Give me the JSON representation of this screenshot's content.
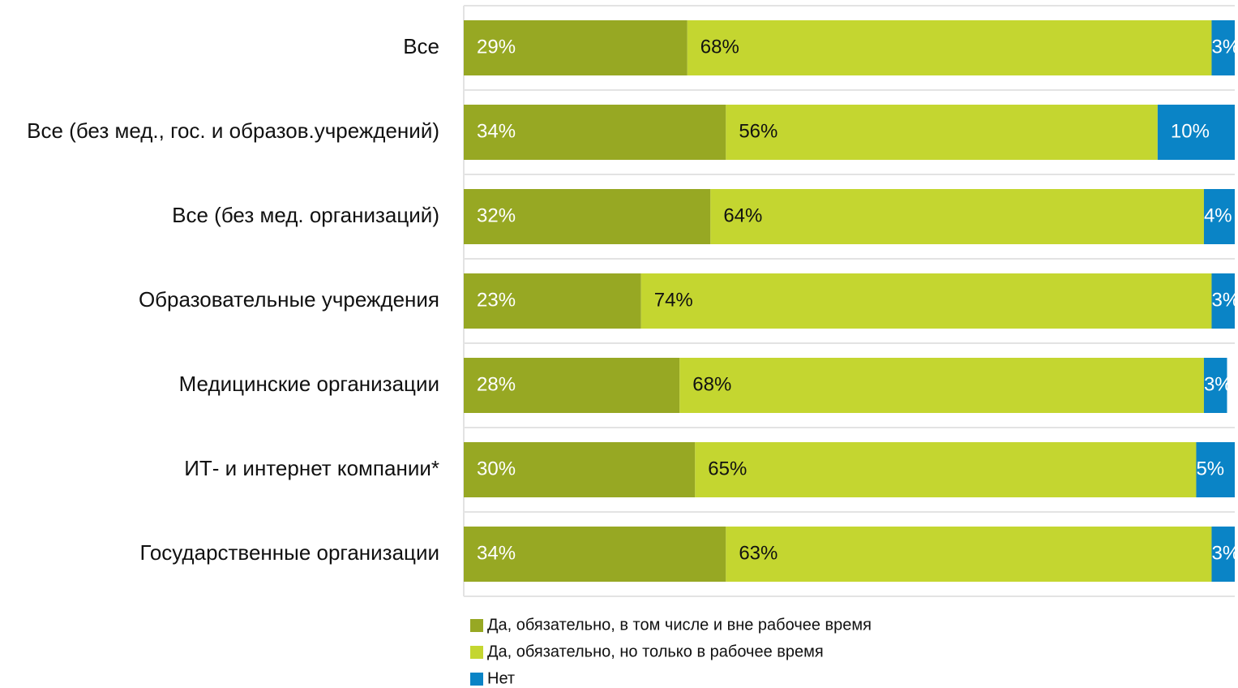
{
  "chart_data": {
    "type": "stacked-bar-horizontal",
    "categories": [
      "Все",
      "Все (без мед., гос. и образов.учреждений)",
      "Все (без мед. организаций)",
      "Образовательные учреждения",
      "Медицинские организации",
      "ИТ- и интернет компании*",
      "Государственные организации"
    ],
    "series": [
      {
        "name": "Да, обязательно, в том числе и вне рабочее время",
        "color": "#97a823",
        "label_color": "#ffffff",
        "values": [
          29,
          34,
          32,
          23,
          28,
          30,
          34
        ],
        "value_labels": [
          "29%",
          "34%",
          "32%",
          "23%",
          "28%",
          "30%",
          "34%"
        ]
      },
      {
        "name": "Да, обязательно, но только в рабочее время",
        "color": "#c4d630",
        "label_color": "#111111",
        "values": [
          68,
          56,
          64,
          74,
          68,
          65,
          63
        ],
        "value_labels": [
          "68%",
          "56%",
          "64%",
          "74%",
          "68%",
          "65%",
          "63%"
        ]
      },
      {
        "name": "Нет",
        "color": "#0a84c6",
        "label_color": "#ffffff",
        "values": [
          3,
          10,
          4,
          3,
          3,
          5,
          3
        ],
        "value_labels": [
          "3%",
          "10%",
          "4%",
          "3%",
          "3%",
          "5%",
          "3%"
        ]
      }
    ],
    "xlim": [
      0,
      100
    ]
  }
}
